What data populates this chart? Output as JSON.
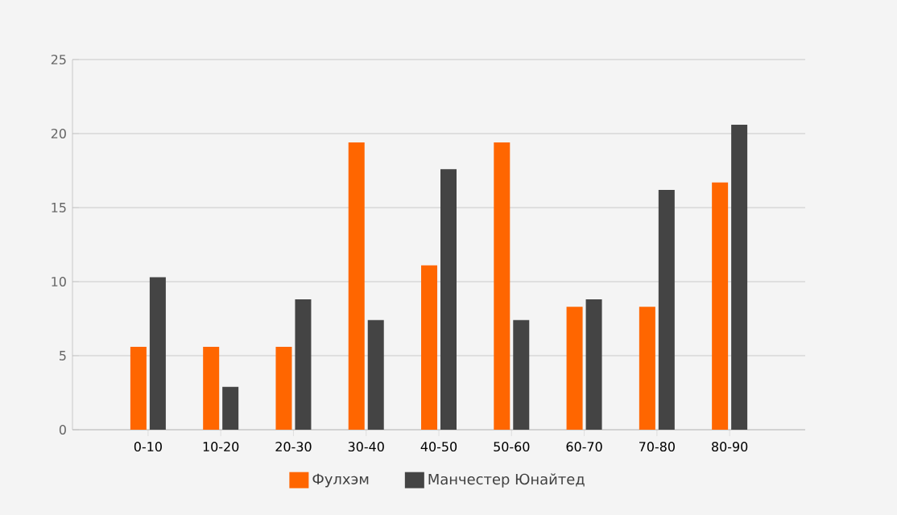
{
  "chart_data": {
    "type": "bar",
    "categories": [
      "0-10",
      "10-20",
      "20-30",
      "30-40",
      "40-50",
      "50-60",
      "60-70",
      "70-80",
      "80-90"
    ],
    "series": [
      {
        "name": "Фулхэм",
        "color": "#ff6600",
        "values": [
          5.6,
          5.6,
          5.6,
          19.4,
          11.1,
          19.4,
          8.3,
          8.3,
          16.7
        ]
      },
      {
        "name": "Манчестер Юнайтед",
        "color": "#444444",
        "values": [
          10.3,
          2.9,
          8.8,
          7.4,
          17.6,
          7.4,
          8.8,
          16.2,
          20.6
        ]
      }
    ],
    "ylim": [
      0,
      25
    ],
    "yticks": [
      0,
      5,
      10,
      15,
      20,
      25
    ],
    "grid": "y",
    "legend": "bottom"
  }
}
